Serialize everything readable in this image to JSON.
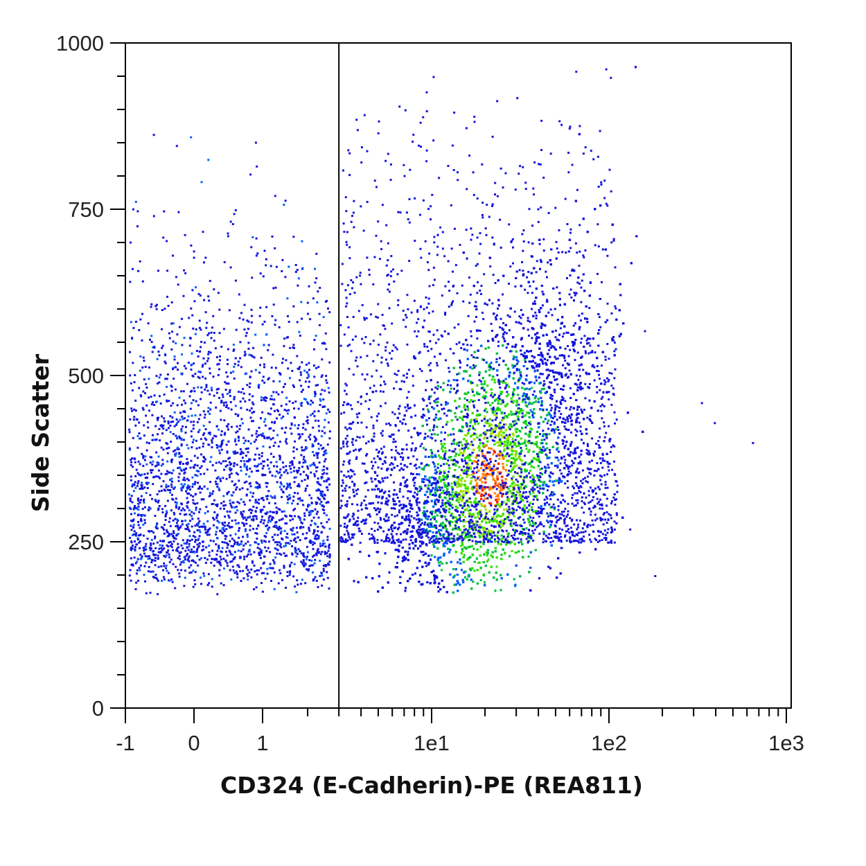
{
  "chart_data": {
    "type": "scatter",
    "title": "",
    "xlabel": "CD324 (E-Cadherin)-PE (REA811)",
    "ylabel": "Side Scatter",
    "x_scale": "biexponential",
    "x_ticks": [
      "-1",
      "0",
      "1",
      "1e1",
      "1e2",
      "1e3"
    ],
    "y_ticks": [
      "0",
      "250",
      "500",
      "750",
      "1000"
    ],
    "ylim": [
      0,
      1000
    ],
    "grid": false,
    "gate_x": 3,
    "density_colors": [
      "#1414dc",
      "#0060ff",
      "#00c040",
      "#32e000",
      "#a0e000",
      "#ff8000",
      "#ff2000"
    ],
    "populations": [
      {
        "name": "",
        "x_range": [
          -1,
          2.5
        ],
        "y_range": [
          170,
          870
        ],
        "density": "sparse"
      },
      {
        "name": "",
        "x_range": [
          3,
          150
        ],
        "y_range": [
          170,
          970
        ],
        "peak": [
          22,
          330
        ],
        "density": "dense"
      }
    ],
    "outliers": [
      [
        330,
        460
      ],
      [
        390,
        430
      ],
      [
        640,
        400
      ],
      [
        180,
        200
      ],
      [
        130,
        270
      ]
    ]
  }
}
